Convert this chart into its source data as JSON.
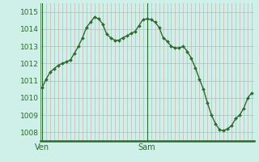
{
  "y_values": [
    1010.6,
    1011.1,
    1011.5,
    1011.7,
    1011.9,
    1012.0,
    1012.1,
    1012.2,
    1012.6,
    1013.0,
    1013.5,
    1014.1,
    1014.4,
    1014.7,
    1014.6,
    1014.3,
    1013.7,
    1013.5,
    1013.35,
    1013.35,
    1013.5,
    1013.6,
    1013.75,
    1013.85,
    1014.2,
    1014.55,
    1014.6,
    1014.55,
    1014.4,
    1014.1,
    1013.5,
    1013.3,
    1013.0,
    1012.9,
    1012.9,
    1013.0,
    1012.7,
    1012.3,
    1011.75,
    1011.1,
    1010.5,
    1009.7,
    1009.0,
    1008.5,
    1008.15,
    1008.1,
    1008.2,
    1008.4,
    1008.8,
    1009.0,
    1009.4,
    1010.0,
    1010.3
  ],
  "ven_idx": 0,
  "sam_idx": 26,
  "ylim": [
    1007.5,
    1015.5
  ],
  "yticks": [
    1008,
    1009,
    1010,
    1011,
    1012,
    1013,
    1014,
    1015
  ],
  "line_color": "#2d6a2d",
  "marker_color": "#2d6a2d",
  "bg_color": "#cef0e8",
  "axis_color": "#2d6a2d",
  "label_color": "#2d6a2d",
  "vgrid_color": "#cc8888",
  "hgrid_color": "#aabfbf",
  "xlabel_ven": "Ven",
  "xlabel_sam": "Sam",
  "num_vlines": 53
}
